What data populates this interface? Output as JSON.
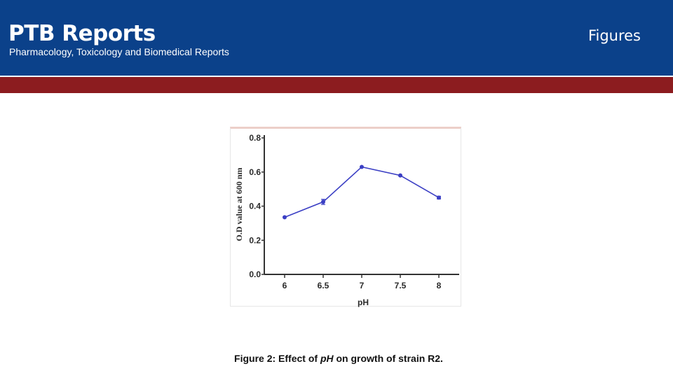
{
  "header": {
    "brand": "PTB Reports",
    "tagline": "Pharmacology, Toxicology and Biomedical Reports",
    "section": "Figures"
  },
  "caption": {
    "prefix": "Figure 2: Effect of ",
    "italic": "pH",
    "suffix": " on growth of strain R2."
  },
  "colors": {
    "header_bg": "#0b418a",
    "accent_bar": "#8c1c1f",
    "series": "#3b3fc4"
  },
  "chart_data": {
    "type": "line",
    "xlabel": "pH",
    "ylabel": "O.D value at 600  nm",
    "x": [
      6,
      6.5,
      7,
      7.5,
      8
    ],
    "x_tick_labels": [
      "6",
      "6.5",
      "7",
      "7.5",
      "8"
    ],
    "series": [
      {
        "values": [
          0.335,
          0.425,
          0.63,
          0.58,
          0.45
        ],
        "error": [
          0.005,
          0.015,
          0.005,
          0.005,
          0.008
        ]
      }
    ],
    "ylim": [
      0,
      0.8
    ],
    "y_ticks": [
      0.0,
      0.2,
      0.4,
      0.6,
      0.8
    ],
    "y_tick_labels": [
      "0.0",
      "0.2",
      "0.4",
      "0.6",
      "0.8"
    ],
    "grid": false,
    "legend": "none"
  }
}
